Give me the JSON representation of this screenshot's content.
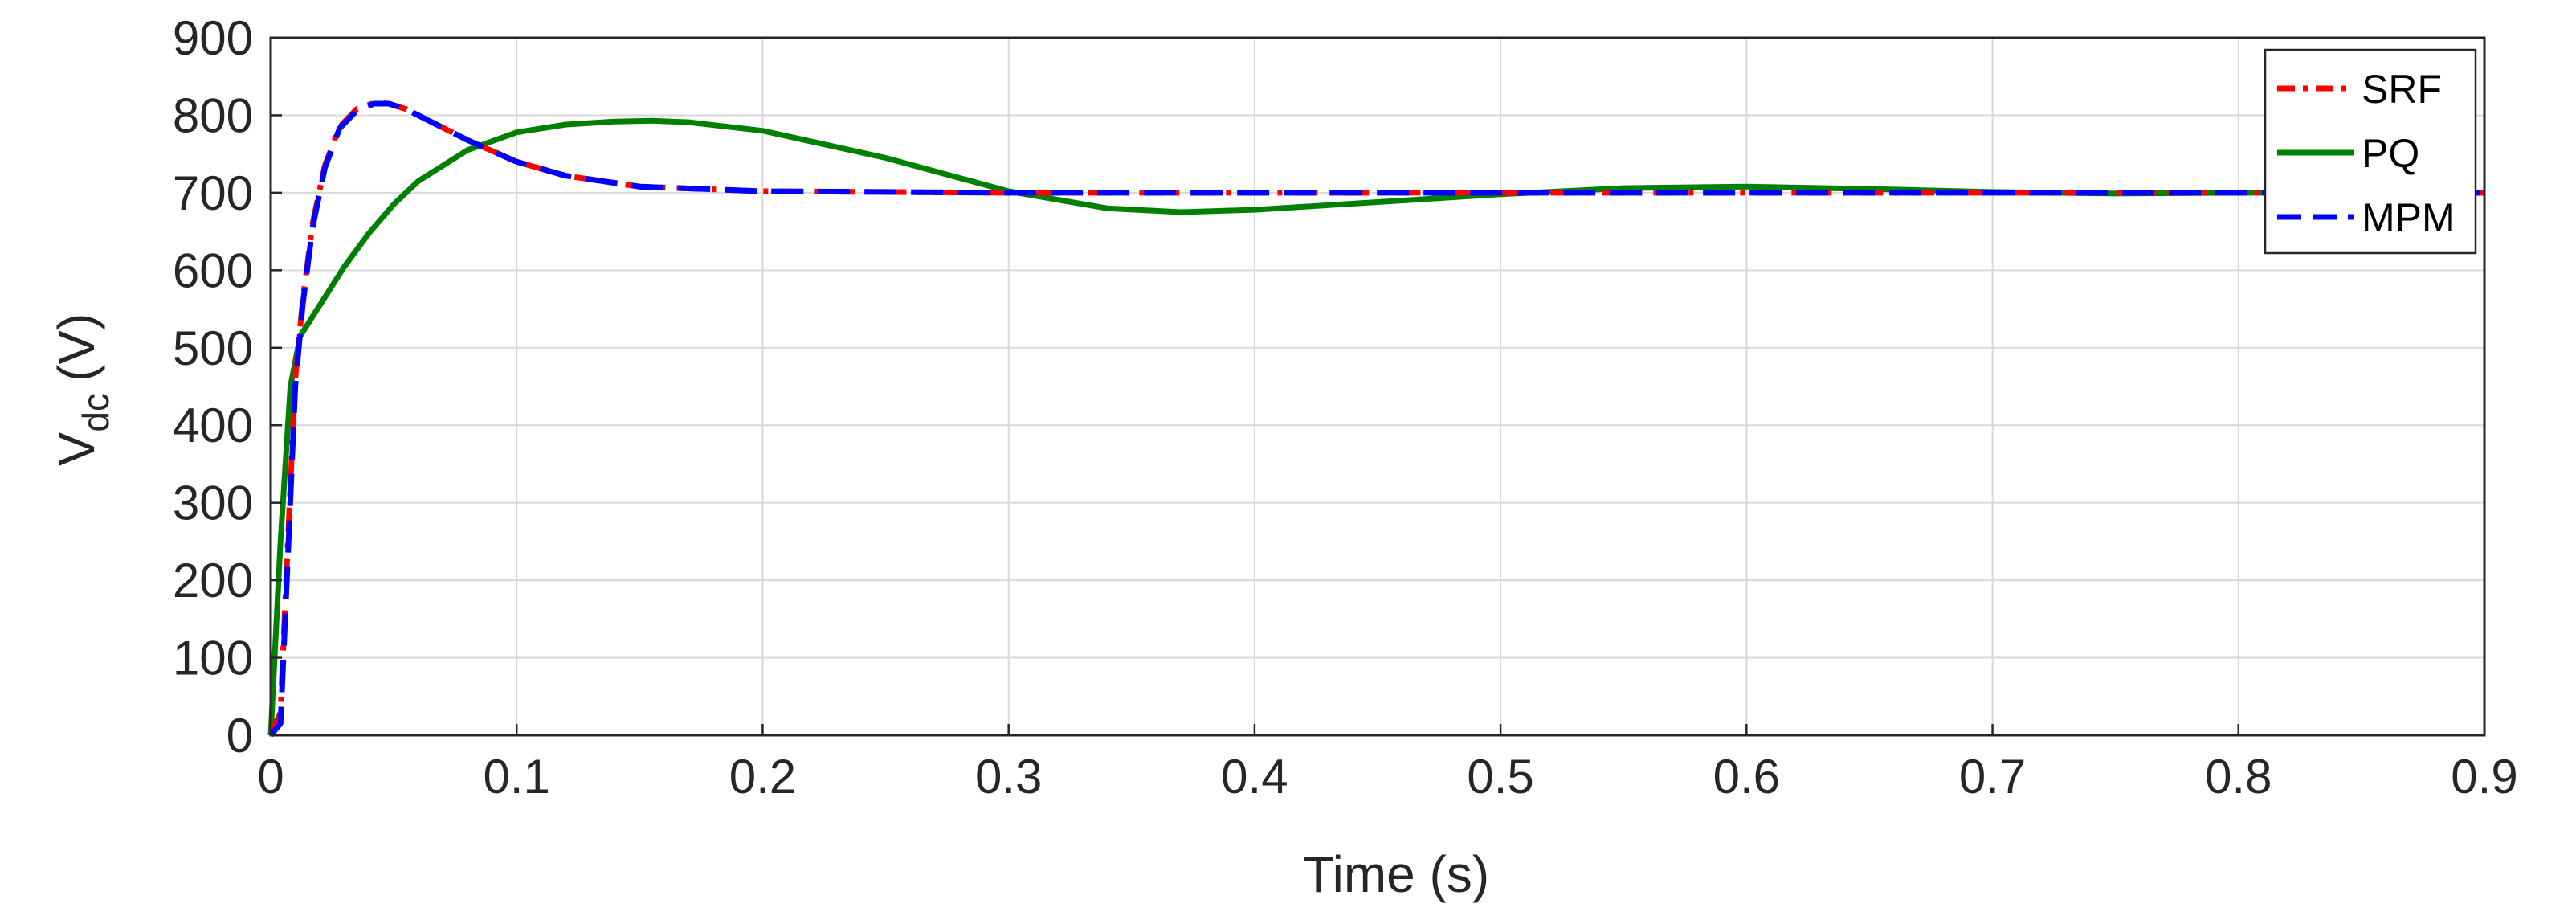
{
  "chart_data": {
    "type": "line",
    "xlabel": "Time (s)",
    "ylabel_main": "V",
    "ylabel_sub": "dc",
    "ylabel_unit": "(V)",
    "xlim": [
      0,
      0.9
    ],
    "ylim": [
      0,
      900
    ],
    "xticks": [
      "0",
      "0.1",
      "0.2",
      "0.3",
      "0.4",
      "0.5",
      "0.6",
      "0.7",
      "0.8",
      "0.9"
    ],
    "yticks": [
      "0",
      "100",
      "200",
      "300",
      "400",
      "500",
      "600",
      "700",
      "800",
      "900"
    ],
    "grid": true,
    "legend_position": "top-right",
    "series": [
      {
        "name": "SRF",
        "color": "#ff0000",
        "style": "dash-dot",
        "x": [
          0,
          0.004,
          0.007,
          0.01,
          0.013,
          0.017,
          0.022,
          0.028,
          0.035,
          0.042,
          0.048,
          0.055,
          0.065,
          0.08,
          0.1,
          0.12,
          0.15,
          0.2,
          0.3,
          0.5,
          0.7,
          0.9
        ],
        "y": [
          0,
          30,
          250,
          460,
          560,
          660,
          735,
          785,
          808,
          816,
          815,
          808,
          792,
          768,
          740,
          722,
          708,
          702,
          700,
          700,
          700,
          700
        ]
      },
      {
        "name": "PQ",
        "color": "#008000",
        "style": "solid",
        "x": [
          0,
          0.004,
          0.008,
          0.012,
          0.02,
          0.03,
          0.04,
          0.05,
          0.06,
          0.08,
          0.1,
          0.12,
          0.14,
          0.155,
          0.17,
          0.2,
          0.25,
          0.3,
          0.34,
          0.37,
          0.4,
          0.45,
          0.5,
          0.55,
          0.6,
          0.65,
          0.7,
          0.75,
          0.8,
          0.9
        ],
        "y": [
          0,
          250,
          450,
          515,
          555,
          605,
          648,
          685,
          715,
          755,
          778,
          788,
          792,
          793,
          791,
          780,
          745,
          702,
          680,
          675,
          678,
          688,
          698,
          706,
          708,
          705,
          701,
          699,
          700,
          700
        ]
      },
      {
        "name": "MPM",
        "color": "#0000ff",
        "style": "dashed",
        "x": [
          0,
          0.004,
          0.007,
          0.01,
          0.013,
          0.017,
          0.022,
          0.028,
          0.035,
          0.042,
          0.048,
          0.055,
          0.065,
          0.08,
          0.1,
          0.12,
          0.15,
          0.2,
          0.3,
          0.5,
          0.7,
          0.9
        ],
        "y": [
          0,
          15,
          230,
          450,
          555,
          655,
          732,
          783,
          806,
          815,
          815,
          808,
          792,
          768,
          740,
          722,
          708,
          702,
          700,
          700,
          700,
          700
        ]
      }
    ]
  }
}
